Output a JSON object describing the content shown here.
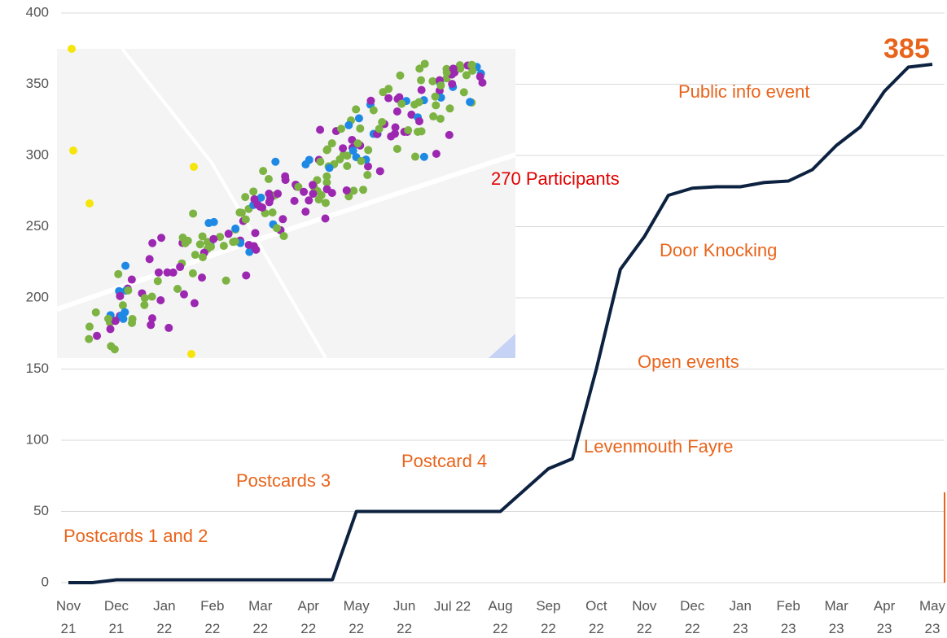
{
  "chart_data": {
    "type": "line",
    "categories": [
      "Nov 21",
      null,
      "Dec 21",
      null,
      "Jan 22",
      null,
      "Feb 22",
      null,
      "Mar 22",
      null,
      "Apr 22",
      null,
      "May 22",
      null,
      "Jun 22",
      null,
      "Jul 22",
      null,
      "Aug 22",
      null,
      "Sep 22",
      null,
      "Oct 22",
      null,
      "Nov 22",
      null,
      "Dec 22",
      null,
      "Jan 23",
      null,
      "Feb 23",
      null,
      "Mar 23",
      null,
      "Apr 23",
      null,
      "May 23"
    ],
    "series": [
      {
        "color": "#0d2240",
        "values": [
          0,
          0,
          2,
          2,
          2,
          2,
          2,
          2,
          2,
          2,
          2,
          2,
          50,
          50,
          50,
          50,
          50,
          50,
          50,
          65,
          80,
          87,
          150,
          220,
          243,
          272,
          277,
          278,
          278,
          281,
          282,
          290,
          307,
          320,
          345,
          362,
          364
        ]
      }
    ],
    "ylim": [
      0,
      400
    ],
    "yticks": [
      0,
      50,
      100,
      150,
      200,
      250,
      300,
      350,
      400
    ],
    "grid": true,
    "annotations": [
      {
        "text": "Postcards 1 and 2",
        "color": "#e8641b"
      },
      {
        "text": "Postcards 3",
        "color": "#e8641b"
      },
      {
        "text": "Postcard 4",
        "color": "#e8641b"
      },
      {
        "text": "Levenmouth Fayre",
        "color": "#e8641b"
      },
      {
        "text": "Open events",
        "color": "#e8641b"
      },
      {
        "text": "Door Knocking",
        "color": "#e8641b"
      },
      {
        "text": "270 Participants",
        "color": "#e00000"
      },
      {
        "text": "Public info event",
        "color": "#e8641b"
      },
      {
        "text": "385",
        "color": "#e8641b"
      }
    ]
  }
}
